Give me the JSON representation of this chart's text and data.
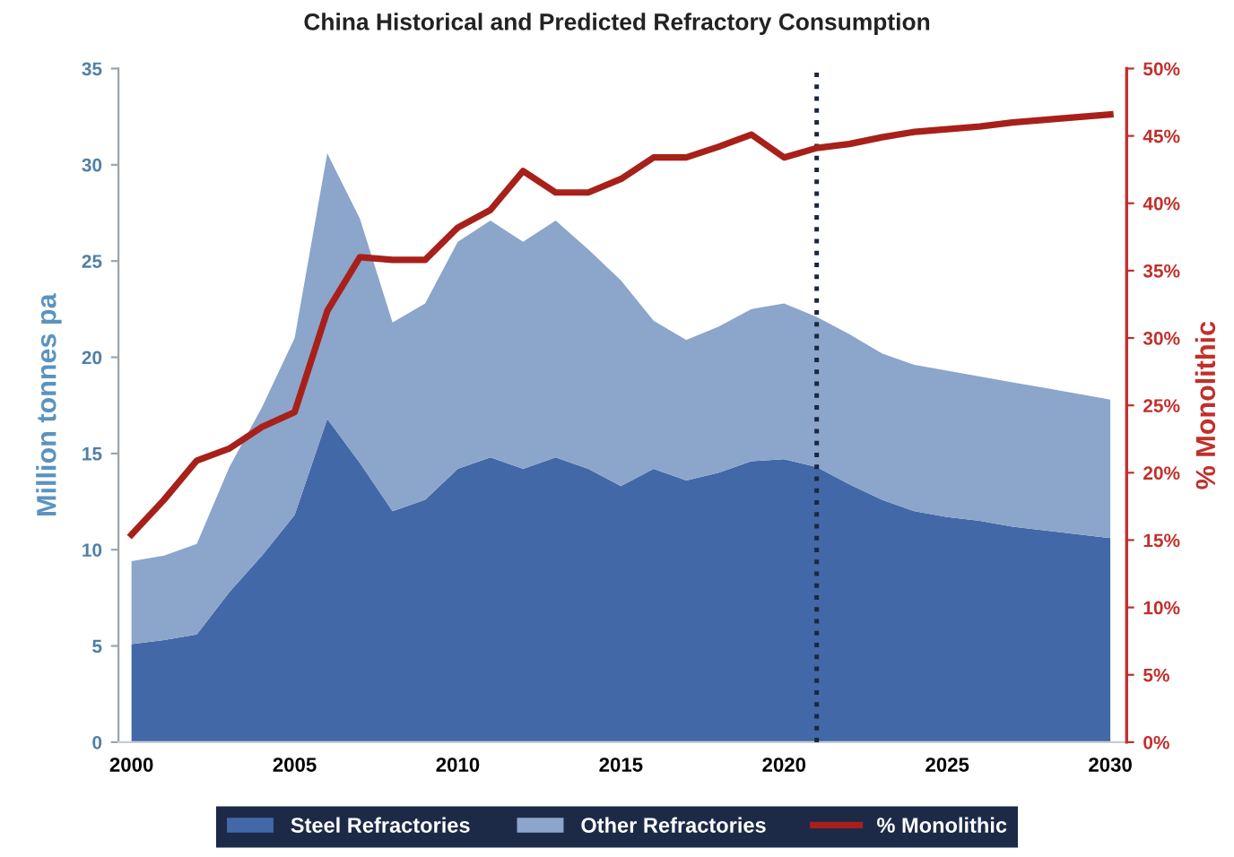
{
  "chart_data": {
    "type": "area",
    "stacked": true,
    "title": "China Historical and Predicted Refractory Consumption",
    "ylabel": "Million tonnes pa",
    "y2label": "% Monolithic",
    "x": [
      2000,
      2001,
      2002,
      2003,
      2004,
      2005,
      2006,
      2007,
      2008,
      2009,
      2010,
      2011,
      2012,
      2013,
      2014,
      2015,
      2016,
      2017,
      2018,
      2019,
      2020,
      2021,
      2022,
      2023,
      2024,
      2025,
      2026,
      2027,
      2028,
      2029,
      2030
    ],
    "series": [
      {
        "name": "Steel Refractories",
        "color": "#4268a8",
        "values": [
          5.1,
          5.3,
          5.6,
          7.8,
          9.7,
          11.8,
          16.8,
          14.5,
          12.0,
          12.6,
          14.2,
          14.8,
          14.2,
          14.8,
          14.2,
          13.3,
          14.2,
          13.6,
          14.0,
          14.6,
          14.7,
          14.3,
          13.4,
          12.6,
          12.0,
          11.7,
          11.5,
          11.2,
          11.0,
          10.8,
          10.6
        ]
      },
      {
        "name": "Other Refractories",
        "color": "#8ba5cb",
        "values": [
          4.3,
          4.4,
          4.7,
          6.5,
          7.7,
          9.2,
          13.8,
          12.7,
          9.8,
          10.2,
          11.8,
          12.3,
          11.8,
          12.3,
          11.4,
          10.7,
          7.7,
          7.3,
          7.6,
          7.9,
          8.1,
          7.8,
          7.8,
          7.6,
          7.6,
          7.6,
          7.5,
          7.5,
          7.4,
          7.3,
          7.2
        ]
      },
      {
        "name": "% Monolithic",
        "type": "line",
        "axis": "y2",
        "color": "#a8201a",
        "values": [
          15.4,
          18.0,
          20.9,
          21.8,
          23.4,
          24.5,
          32.0,
          36.0,
          35.8,
          35.8,
          38.2,
          39.5,
          42.4,
          40.8,
          40.8,
          41.8,
          43.4,
          43.4,
          44.2,
          45.1,
          43.4,
          44.1,
          44.4,
          44.9,
          45.3,
          45.5,
          45.7,
          46.0,
          46.2,
          46.4,
          46.6
        ]
      }
    ],
    "xlim": [
      1999.6,
      2030.5
    ],
    "xticks": [
      2000,
      2005,
      2010,
      2015,
      2020,
      2025,
      2030
    ],
    "ylim": [
      0,
      35
    ],
    "yticks": [
      0,
      5,
      10,
      15,
      20,
      25,
      30,
      35
    ],
    "y2lim": [
      0,
      50
    ],
    "y2ticks": [
      {
        "value": 0,
        "label": "0%"
      },
      {
        "value": 5,
        "label": "5%"
      },
      {
        "value": 10,
        "label": "10%"
      },
      {
        "value": 15,
        "label": "15%"
      },
      {
        "value": 20,
        "label": "20%"
      },
      {
        "value": 25,
        "label": "25%"
      },
      {
        "value": 30,
        "label": "30%"
      },
      {
        "value": 35,
        "label": "35%"
      },
      {
        "value": 40,
        "label": "40%"
      },
      {
        "value": 45,
        "label": "45%"
      },
      {
        "value": 50,
        "label": "50%"
      }
    ],
    "ref_lines": [
      {
        "axis": "x",
        "value": 2021,
        "color": "#1b2740",
        "line_style": "dotted"
      }
    ],
    "grid": false,
    "legend": "bottom"
  }
}
